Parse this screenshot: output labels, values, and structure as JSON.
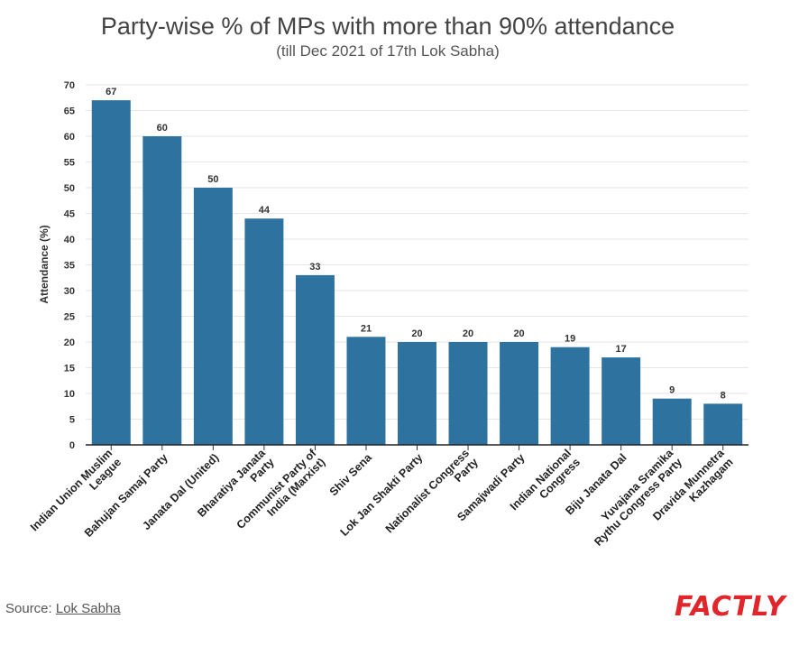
{
  "title": "Party-wise % of MPs with more than 90% attendance",
  "subtitle": "(till Dec 2021 of 17th Lok Sabha)",
  "source": {
    "prefix": "Source: ",
    "link_label": "Lok Sabha"
  },
  "logo_text": "FACTLY",
  "colors": {
    "bar": "#2e73a0",
    "grid": "#e6e6e6",
    "logo": "#e0262b"
  },
  "chart_data": {
    "type": "bar",
    "title": "Party-wise % of MPs with more than 90% attendance",
    "subtitle": "(till Dec 2021 of 17th Lok Sabha)",
    "xlabel": "",
    "ylabel": "Attendance (%)",
    "ylim": [
      0,
      70
    ],
    "yticks": [
      0,
      5,
      10,
      15,
      20,
      25,
      30,
      35,
      40,
      45,
      50,
      55,
      60,
      65,
      70
    ],
    "grid": true,
    "categories": [
      [
        "Indian Union Muslim",
        "League"
      ],
      [
        "Bahujan Samaj Party"
      ],
      [
        "Janata Dal (United)"
      ],
      [
        "Bharatiya Janata",
        "Party"
      ],
      [
        "Communist Party of",
        "India (Marxist)"
      ],
      [
        "Shiv Sena"
      ],
      [
        "Lok Jan Shakti Party"
      ],
      [
        "Nationalist Congress",
        "Party"
      ],
      [
        "Samajwadi Party"
      ],
      [
        "Indian National",
        "Congress"
      ],
      [
        "Biju Janata Dal"
      ],
      [
        "Yuvajana Sramika",
        "Rythu Congress Party"
      ],
      [
        "Dravida Munnetra",
        "Kazhagam"
      ]
    ],
    "values": [
      67,
      60,
      50,
      44,
      33,
      21,
      20,
      20,
      20,
      19,
      17,
      9,
      8
    ]
  }
}
